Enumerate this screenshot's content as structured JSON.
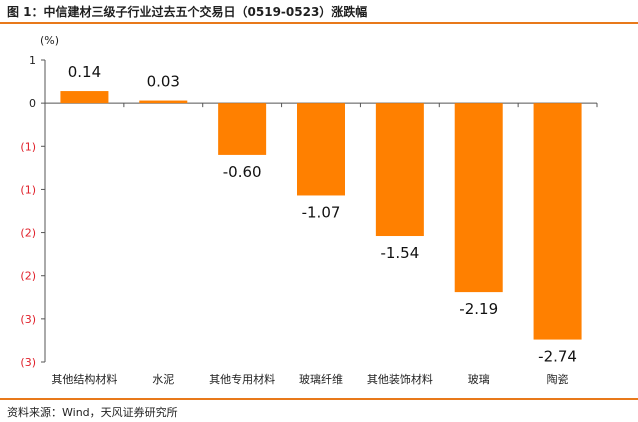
{
  "title": "图 1：中信建材三级子行业过去五个交易日（0519-0523）涨跌幅",
  "source": "资料来源：Wind，天风证券研究所",
  "chart_data": {
    "type": "bar",
    "unit_label": "(%)",
    "categories": [
      "其他结构材料",
      "水泥",
      "其他专用材料",
      "玻璃纤维",
      "其他装饰材料",
      "玻璃",
      "陶瓷"
    ],
    "values": [
      0.14,
      0.03,
      -0.6,
      -1.07,
      -1.54,
      -2.19,
      -2.74
    ],
    "data_labels": [
      "0.14",
      "0.03",
      "-0.60",
      "-1.07",
      "-1.54",
      "-2.19",
      "-2.74"
    ],
    "y_ticks": [
      {
        "value": 0.5,
        "label": "1",
        "color": "#1f1f1f"
      },
      {
        "value": 0,
        "label": "0",
        "color": "#1f1f1f"
      },
      {
        "value": -0.5,
        "label": "(1)",
        "color": "#e0202a"
      },
      {
        "value": -1.0,
        "label": "(1)",
        "color": "#e0202a"
      },
      {
        "value": -1.5,
        "label": "(2)",
        "color": "#e0202a"
      },
      {
        "value": -2.0,
        "label": "(2)",
        "color": "#e0202a"
      },
      {
        "value": -2.5,
        "label": "(3)",
        "color": "#e0202a"
      },
      {
        "value": -3.0,
        "label": "(3)",
        "color": "#e0202a"
      }
    ],
    "ylim": [
      -3.0,
      0.5
    ],
    "bar_color": "#ff8000",
    "grid": false,
    "legend": "none"
  }
}
